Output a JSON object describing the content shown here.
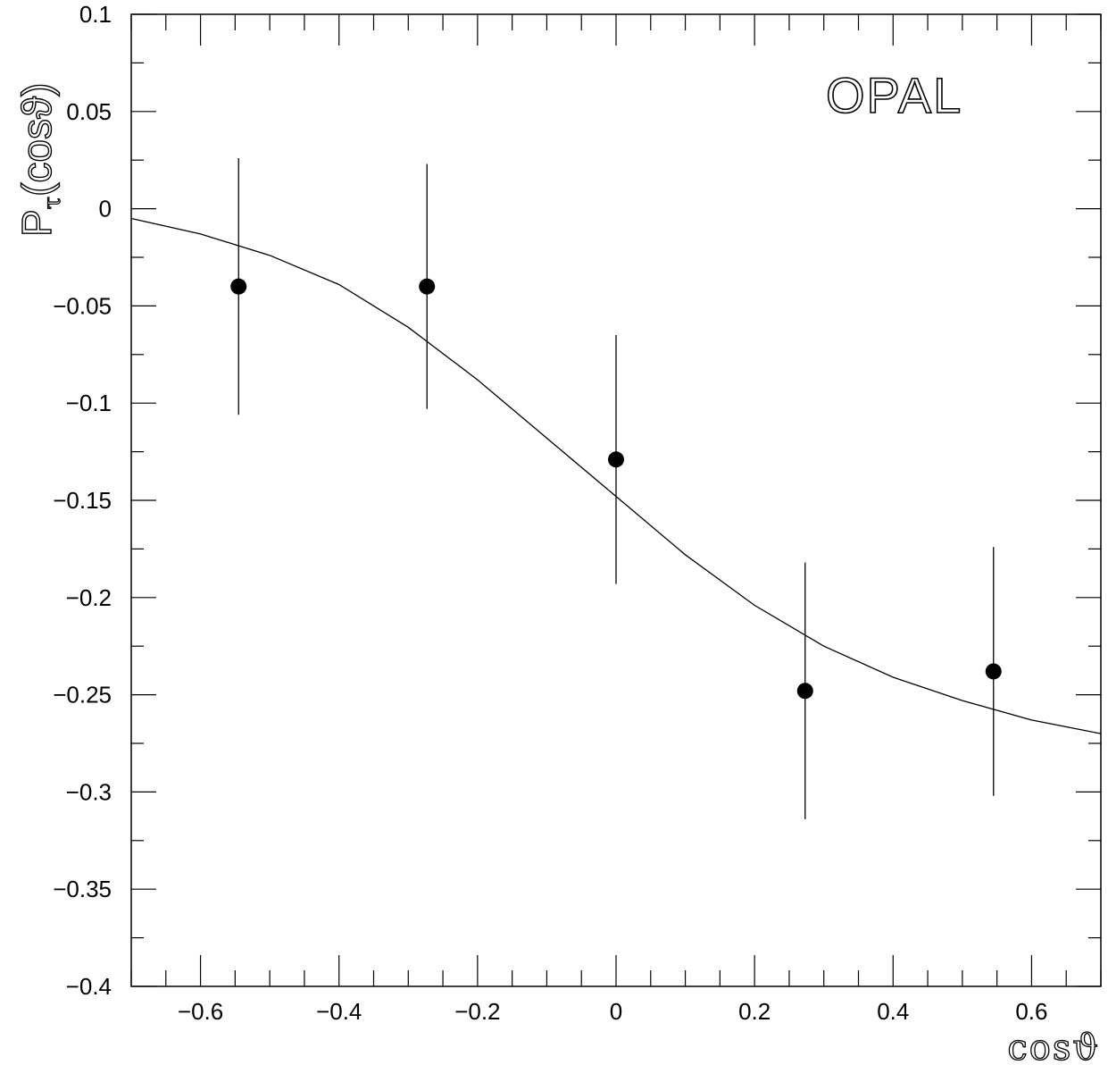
{
  "chart_data": {
    "type": "scatter",
    "title": "",
    "annotation": "OPAL",
    "xlabel": "cosϑ",
    "ylabel": {
      "main": "P",
      "sub": "τ",
      "arg": "(cosϑ)"
    },
    "xlim": [
      -0.7,
      0.7
    ],
    "ylim": [
      -0.4,
      0.1
    ],
    "x_ticks": [
      -0.6,
      -0.4,
      -0.2,
      0,
      0.2,
      0.4,
      0.6
    ],
    "x_tick_labels": [
      "−0.6",
      "−0.4",
      "−0.2",
      "0",
      "0.2",
      "0.4",
      "0.6"
    ],
    "y_ticks": [
      0.1,
      0.05,
      0,
      -0.05,
      -0.1,
      -0.15,
      -0.2,
      -0.25,
      -0.3,
      -0.35,
      -0.4
    ],
    "y_tick_labels": [
      "0.1",
      "0.05",
      "0",
      "−0.05",
      "−0.1",
      "−0.15",
      "−0.2",
      "−0.25",
      "−0.3",
      "−0.35",
      "−0.4"
    ],
    "grid": false,
    "points": [
      {
        "x": -0.545,
        "y": -0.04,
        "err": 0.066
      },
      {
        "x": -0.273,
        "y": -0.04,
        "err": 0.063
      },
      {
        "x": 0.0,
        "y": -0.129,
        "err": 0.064
      },
      {
        "x": 0.273,
        "y": -0.248,
        "err": 0.066
      },
      {
        "x": 0.545,
        "y": -0.238,
        "err": 0.064
      }
    ],
    "fit_curve": {
      "x": [
        -0.7,
        -0.6,
        -0.5,
        -0.4,
        -0.3,
        -0.2,
        -0.1,
        0.0,
        0.1,
        0.2,
        0.3,
        0.4,
        0.5,
        0.6,
        0.7
      ],
      "y": [
        -0.005,
        -0.013,
        -0.024,
        -0.039,
        -0.061,
        -0.088,
        -0.118,
        -0.148,
        -0.178,
        -0.204,
        -0.225,
        -0.241,
        -0.253,
        -0.263,
        -0.27
      ]
    },
    "colors": {
      "axis": "#000000",
      "marker": "#000000",
      "background": "#ffffff"
    }
  }
}
